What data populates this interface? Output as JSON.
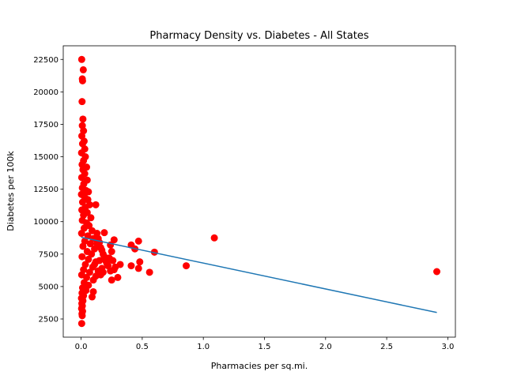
{
  "chart_data": {
    "type": "scatter",
    "title": "Pharmacy Density vs. Diabetes - All States",
    "xlabel": "Pharmacies per sq.mi.",
    "ylabel": "Diabetes per 100k",
    "xlim": [
      -0.146,
      3.062
    ],
    "ylim": [
      1100,
      23550
    ],
    "xticks": [
      0.0,
      0.5,
      1.0,
      1.5,
      2.0,
      2.5,
      3.0
    ],
    "xtick_labels": [
      "0.0",
      "0.5",
      "1.0",
      "1.5",
      "2.0",
      "2.5",
      "3.0"
    ],
    "yticks": [
      2500,
      5000,
      7500,
      10000,
      12500,
      15000,
      17500,
      20000,
      22500
    ],
    "ytick_labels": [
      "2500",
      "5000",
      "7500",
      "10000",
      "12500",
      "15000",
      "17500",
      "20000",
      "22500"
    ],
    "grid": false,
    "marker_color": "#ff0000",
    "line_color": "#1f77b4",
    "points": [
      [
        0.005,
        22500
      ],
      [
        0.018,
        21700
      ],
      [
        0.01,
        21000
      ],
      [
        0.012,
        20850
      ],
      [
        0.008,
        19250
      ],
      [
        0.015,
        17900
      ],
      [
        0.01,
        17400
      ],
      [
        0.02,
        17000
      ],
      [
        0.006,
        16600
      ],
      [
        0.025,
        16200
      ],
      [
        0.012,
        16000
      ],
      [
        0.03,
        15600
      ],
      [
        0.004,
        15300
      ],
      [
        0.035,
        15000
      ],
      [
        0.02,
        14700
      ],
      [
        0.008,
        14400
      ],
      [
        0.045,
        14200
      ],
      [
        0.015,
        14000
      ],
      [
        0.03,
        13700
      ],
      [
        0.005,
        13400
      ],
      [
        0.05,
        13200
      ],
      [
        0.022,
        12900
      ],
      [
        0.01,
        12600
      ],
      [
        0.04,
        12400
      ],
      [
        0.06,
        12300
      ],
      [
        0.003,
        12100
      ],
      [
        0.028,
        11900
      ],
      [
        0.055,
        11700
      ],
      [
        0.012,
        11500
      ],
      [
        0.07,
        11300
      ],
      [
        0.035,
        11100
      ],
      [
        0.006,
        10900
      ],
      [
        0.05,
        10700
      ],
      [
        0.02,
        10500
      ],
      [
        0.08,
        10300
      ],
      [
        0.01,
        10100
      ],
      [
        0.045,
        9900
      ],
      [
        0.065,
        9700
      ],
      [
        0.025,
        9500
      ],
      [
        0.09,
        9300
      ],
      [
        0.004,
        9100
      ],
      [
        0.055,
        8900
      ],
      [
        0.1,
        8700
      ],
      [
        0.03,
        8500
      ],
      [
        0.075,
        8300
      ],
      [
        0.015,
        8100
      ],
      [
        0.11,
        7900
      ],
      [
        0.05,
        7700
      ],
      [
        0.085,
        7500
      ],
      [
        0.008,
        7300
      ],
      [
        0.06,
        7100
      ],
      [
        0.12,
        6900
      ],
      [
        0.035,
        6700
      ],
      [
        0.095,
        6500
      ],
      [
        0.02,
        6300
      ],
      [
        0.07,
        6100
      ],
      [
        0.005,
        5900
      ],
      [
        0.045,
        5700
      ],
      [
        0.1,
        5500
      ],
      [
        0.025,
        5300
      ],
      [
        0.06,
        5100
      ],
      [
        0.012,
        4900
      ],
      [
        0.04,
        4700
      ],
      [
        0.008,
        4500
      ],
      [
        0.02,
        4300
      ],
      [
        0.003,
        4100
      ],
      [
        0.015,
        3900
      ],
      [
        0.006,
        3700
      ],
      [
        0.01,
        3500
      ],
      [
        0.004,
        3300
      ],
      [
        0.012,
        3100
      ],
      [
        0.007,
        2900
      ],
      [
        0.009,
        2750
      ],
      [
        0.005,
        2150
      ],
      [
        0.13,
        9100
      ],
      [
        0.14,
        8700
      ],
      [
        0.15,
        8400
      ],
      [
        0.16,
        8000
      ],
      [
        0.17,
        7800
      ],
      [
        0.18,
        7500
      ],
      [
        0.19,
        7300
      ],
      [
        0.2,
        7000
      ],
      [
        0.21,
        6800
      ],
      [
        0.22,
        6600
      ],
      [
        0.14,
        6200
      ],
      [
        0.16,
        5900
      ],
      [
        0.18,
        6100
      ],
      [
        0.12,
        5800
      ],
      [
        0.1,
        4600
      ],
      [
        0.09,
        4200
      ],
      [
        0.13,
        8300
      ],
      [
        0.11,
        6700
      ],
      [
        0.15,
        7000
      ],
      [
        0.17,
        6400
      ],
      [
        0.24,
        8200
      ],
      [
        0.25,
        7700
      ],
      [
        0.26,
        7000
      ],
      [
        0.28,
        6500
      ],
      [
        0.27,
        6300
      ],
      [
        0.25,
        5500
      ],
      [
        0.3,
        5700
      ],
      [
        0.32,
        6700
      ],
      [
        0.24,
        6200
      ],
      [
        0.23,
        7200
      ],
      [
        0.19,
        9150
      ],
      [
        0.27,
        8600
      ],
      [
        0.12,
        11300
      ],
      [
        0.41,
        8200
      ],
      [
        0.44,
        7900
      ],
      [
        0.47,
        8500
      ],
      [
        0.48,
        6900
      ],
      [
        0.41,
        6600
      ],
      [
        0.47,
        6400
      ],
      [
        0.56,
        6100
      ],
      [
        0.6,
        7650
      ],
      [
        0.86,
        6600
      ],
      [
        1.09,
        8750
      ],
      [
        2.91,
        6150
      ]
    ],
    "regression_line": {
      "x": [
        0.0,
        2.91
      ],
      "y": [
        8800,
        3000
      ]
    }
  }
}
